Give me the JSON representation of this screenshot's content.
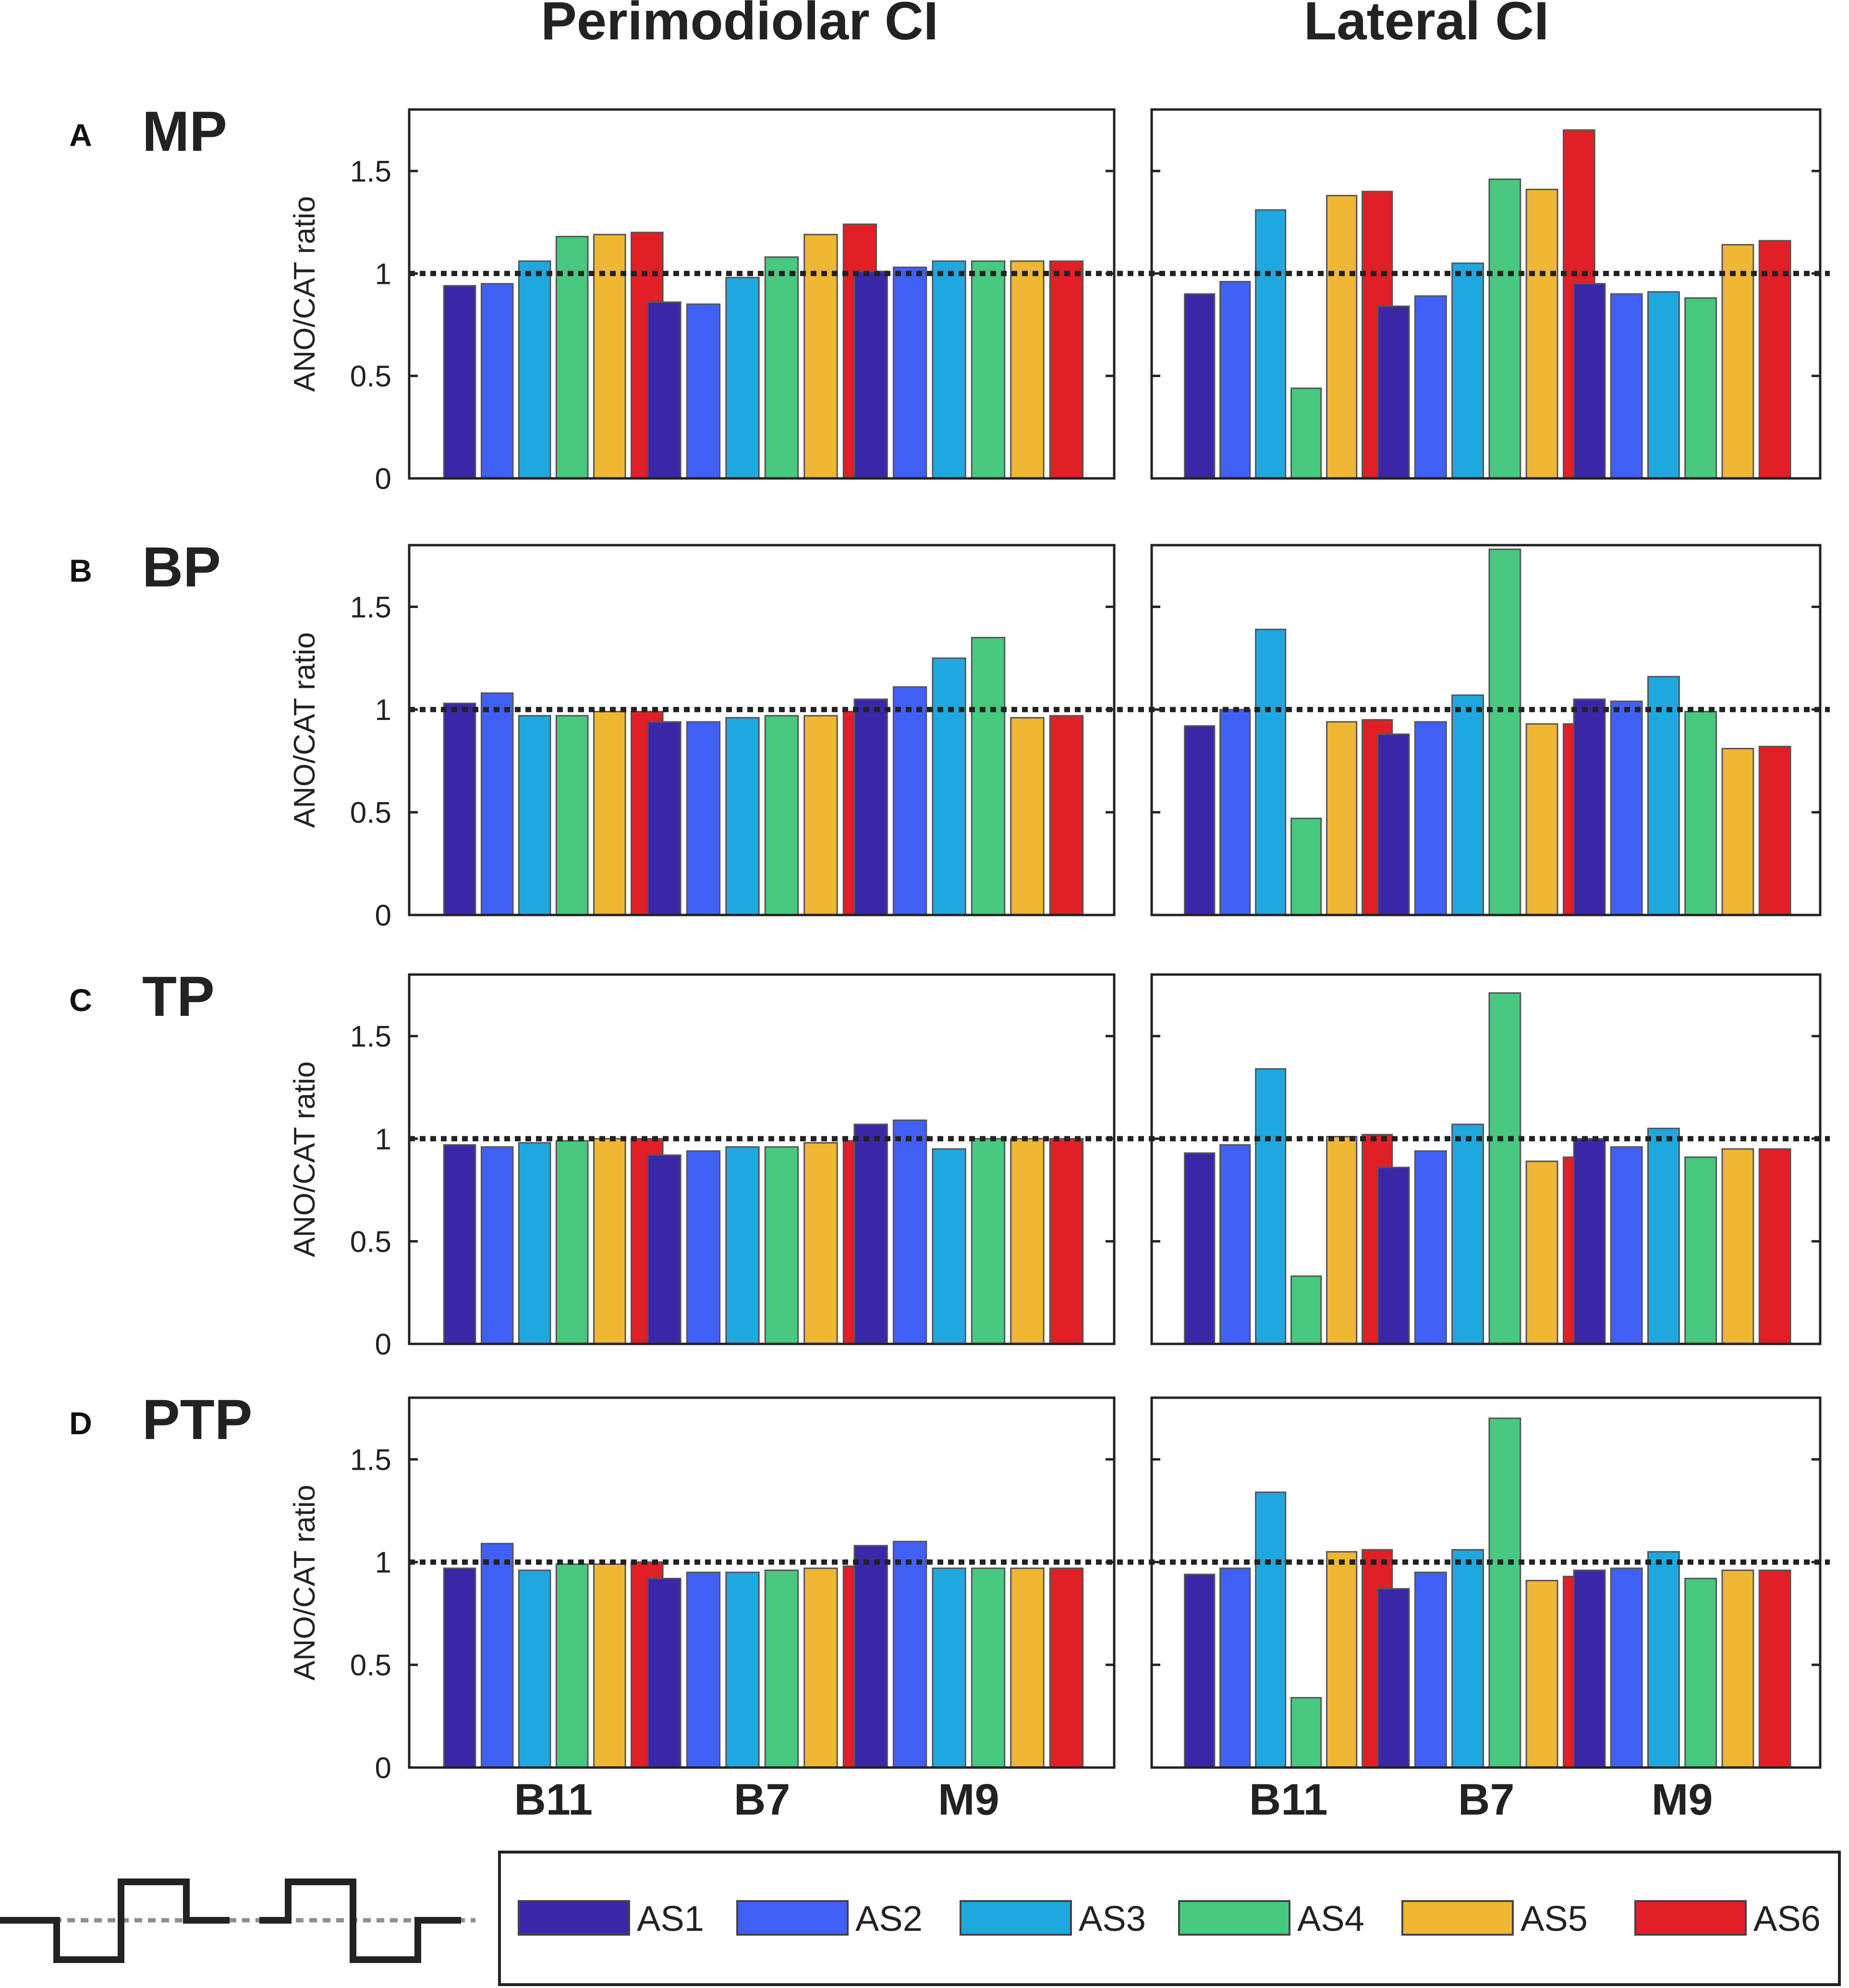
{
  "chart_data": {
    "type": "bar",
    "column_titles": [
      "Perimodiolar CI",
      "Lateral CI"
    ],
    "categories": [
      "B11",
      "B7",
      "M9"
    ],
    "ylabel": "ANO/CAT ratio",
    "ylim": [
      0,
      1.8
    ],
    "yticks": [
      0,
      0.5,
      1,
      1.5
    ],
    "ytick_labels": [
      "0",
      "0.5",
      "1",
      "1.5"
    ],
    "reference_line": 1,
    "series_names": [
      "AS1",
      "AS2",
      "AS3",
      "AS4",
      "AS5",
      "AS6"
    ],
    "colors": [
      "#3a27a8",
      "#4060f5",
      "#1fa8e0",
      "#47c97f",
      "#efb734",
      "#e01f26"
    ],
    "rows": [
      {
        "letter": "A",
        "label": "MP",
        "panels": [
          {
            "column": "Perimodiolar CI",
            "values": [
              [
                0.94,
                0.95,
                1.06,
                1.18,
                1.19,
                1.2
              ],
              [
                0.86,
                0.85,
                0.98,
                1.08,
                1.19,
                1.24
              ],
              [
                1.01,
                1.03,
                1.06,
                1.06,
                1.06,
                1.06
              ]
            ]
          },
          {
            "column": "Lateral CI",
            "values": [
              [
                0.9,
                0.96,
                1.31,
                0.44,
                1.38,
                1.4
              ],
              [
                0.84,
                0.89,
                1.05,
                1.46,
                1.41,
                1.7
              ],
              [
                0.95,
                0.9,
                0.91,
                0.88,
                1.14,
                1.16
              ]
            ]
          }
        ]
      },
      {
        "letter": "B",
        "label": "BP",
        "panels": [
          {
            "column": "Perimodiolar CI",
            "values": [
              [
                1.03,
                1.08,
                0.97,
                0.97,
                0.99,
                0.99
              ],
              [
                0.94,
                0.94,
                0.96,
                0.97,
                0.97,
                0.99
              ],
              [
                1.05,
                1.11,
                1.25,
                1.35,
                0.96,
                0.97
              ]
            ]
          },
          {
            "column": "Lateral CI",
            "values": [
              [
                0.92,
                1.0,
                1.39,
                0.47,
                0.94,
                0.95
              ],
              [
                0.88,
                0.94,
                1.07,
                1.78,
                0.93,
                0.93
              ],
              [
                1.05,
                1.04,
                1.16,
                0.99,
                0.81,
                0.82
              ]
            ]
          }
        ]
      },
      {
        "letter": "C",
        "label": "TP",
        "panels": [
          {
            "column": "Perimodiolar CI",
            "values": [
              [
                0.97,
                0.96,
                0.98,
                0.99,
                1.0,
                1.0
              ],
              [
                0.92,
                0.94,
                0.96,
                0.96,
                0.98,
                0.99
              ],
              [
                1.07,
                1.09,
                0.95,
                1.0,
                1.0,
                1.0
              ]
            ]
          },
          {
            "column": "Lateral CI",
            "values": [
              [
                0.93,
                0.97,
                1.34,
                0.33,
                1.01,
                1.02
              ],
              [
                0.86,
                0.94,
                1.07,
                1.71,
                0.89,
                0.91
              ],
              [
                1.0,
                0.96,
                1.05,
                0.91,
                0.95,
                0.95
              ]
            ]
          }
        ]
      },
      {
        "letter": "D",
        "label": "PTP",
        "panels": [
          {
            "column": "Perimodiolar CI",
            "values": [
              [
                0.97,
                1.09,
                0.96,
                0.99,
                0.99,
                1.0
              ],
              [
                0.92,
                0.95,
                0.95,
                0.96,
                0.97,
                0.98
              ],
              [
                1.08,
                1.1,
                0.97,
                0.97,
                0.97,
                0.97
              ]
            ]
          },
          {
            "column": "Lateral CI",
            "values": [
              [
                0.94,
                0.97,
                1.34,
                0.34,
                1.05,
                1.06
              ],
              [
                0.87,
                0.95,
                1.06,
                1.7,
                0.91,
                0.93
              ],
              [
                0.96,
                0.97,
                1.05,
                0.92,
                0.96,
                0.96
              ]
            ]
          }
        ]
      }
    ]
  }
}
